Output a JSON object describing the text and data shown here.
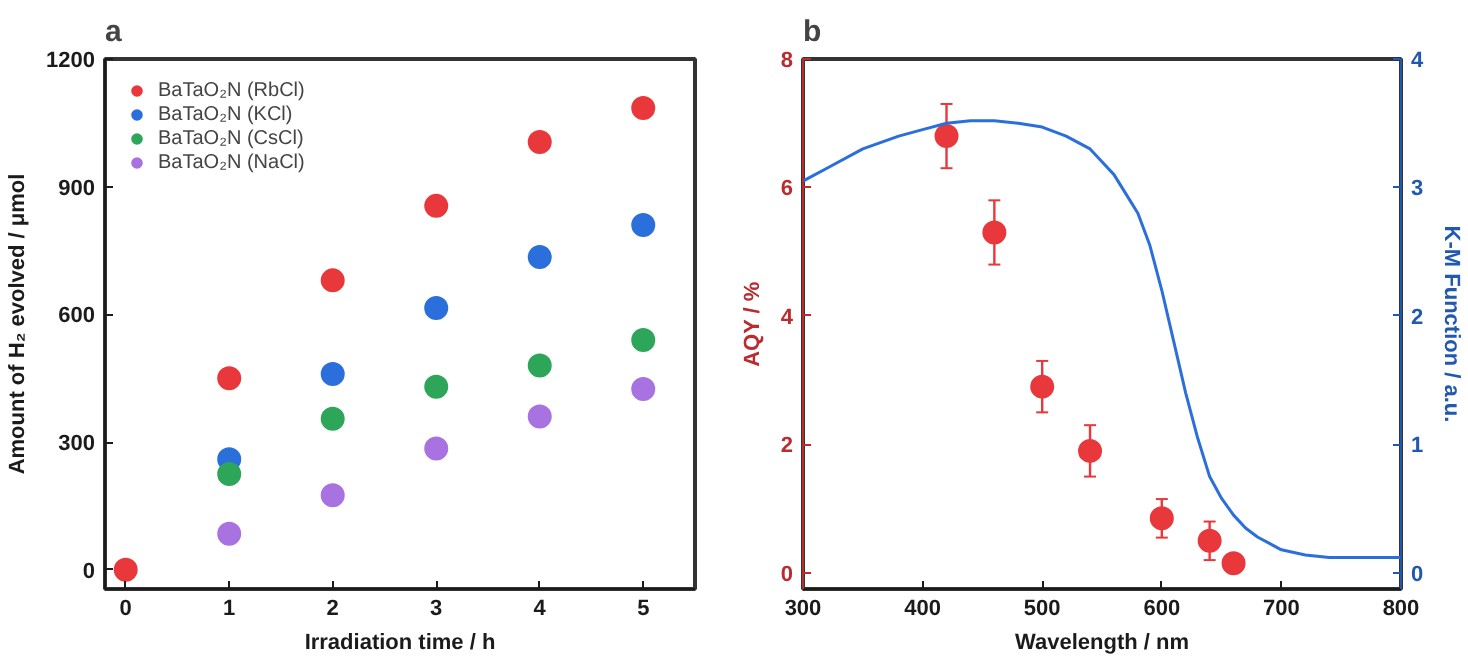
{
  "chart_data": [
    {
      "type": "scatter",
      "title": "a",
      "xlabel": "Irradiation time / h",
      "ylabel": "Amount of H₂ evolved / μmol",
      "xlim": [
        -0.2,
        5.5
      ],
      "xticks": [
        0,
        1,
        2,
        3,
        4,
        5
      ],
      "ylim": [
        -45,
        1200
      ],
      "yticks": [
        0,
        300,
        600,
        900,
        1200
      ],
      "grid": false,
      "legend": "top left",
      "marker": "circle",
      "series": [
        {
          "name": "BaTaO₂N (RbCl)",
          "color": "#e8383b",
          "x": [
            0,
            1,
            2,
            3,
            4,
            5
          ],
          "values": [
            0,
            450,
            680,
            855,
            1005,
            1085
          ]
        },
        {
          "name": "BaTaO₂N (KCl)",
          "color": "#2a6fdc",
          "x": [
            1,
            2,
            3,
            4,
            5
          ],
          "values": [
            260,
            460,
            615,
            735,
            810
          ]
        },
        {
          "name": "BaTaO₂N (CsCl)",
          "color": "#2ea65a",
          "x": [
            1,
            2,
            3,
            4,
            5
          ],
          "values": [
            225,
            355,
            430,
            480,
            540
          ]
        },
        {
          "name": "BaTaO₂N (NaCl)",
          "color": "#a872e0",
          "x": [
            1,
            2,
            3,
            4,
            5
          ],
          "values": [
            85,
            175,
            285,
            360,
            425
          ]
        }
      ]
    },
    {
      "type": "scatter",
      "title": "b",
      "xlabel": "Wavelength / nm",
      "ylabel": "AQY / %",
      "y2label": "K-M Function / a.u.",
      "xlim": [
        300,
        800
      ],
      "xticks": [
        300,
        400,
        500,
        600,
        700,
        800
      ],
      "ylim": [
        -0.25,
        8
      ],
      "yticks": [
        0,
        2,
        4,
        6,
        8
      ],
      "y2lim": [
        -0.125,
        4
      ],
      "y2ticks": [
        0,
        1,
        2,
        3,
        4
      ],
      "grid": false,
      "legend": false,
      "series": [
        {
          "type": "scatter",
          "marker": "circle",
          "color": "#e8383b",
          "x": [
            420,
            460,
            500,
            540,
            600,
            640,
            660
          ],
          "values": [
            6.8,
            5.3,
            2.9,
            1.9,
            0.85,
            0.5,
            0.15
          ],
          "errors": [
            0.5,
            0.5,
            0.4,
            0.4,
            0.3,
            0.3,
            null
          ]
        },
        {
          "type": "line",
          "axis": "y2",
          "color": "#2a6fdc",
          "x": [
            300,
            320,
            350,
            380,
            400,
            420,
            440,
            460,
            480,
            500,
            520,
            540,
            550,
            560,
            570,
            580,
            590,
            600,
            610,
            620,
            630,
            640,
            650,
            660,
            670,
            680,
            700,
            720,
            740,
            760,
            780,
            800
          ],
          "values": [
            3.05,
            3.15,
            3.3,
            3.4,
            3.45,
            3.5,
            3.52,
            3.52,
            3.5,
            3.47,
            3.4,
            3.3,
            3.2,
            3.1,
            2.95,
            2.8,
            2.55,
            2.2,
            1.8,
            1.4,
            1.05,
            0.75,
            0.58,
            0.45,
            0.35,
            0.28,
            0.18,
            0.14,
            0.12,
            0.12,
            0.12,
            0.12
          ]
        }
      ]
    }
  ]
}
